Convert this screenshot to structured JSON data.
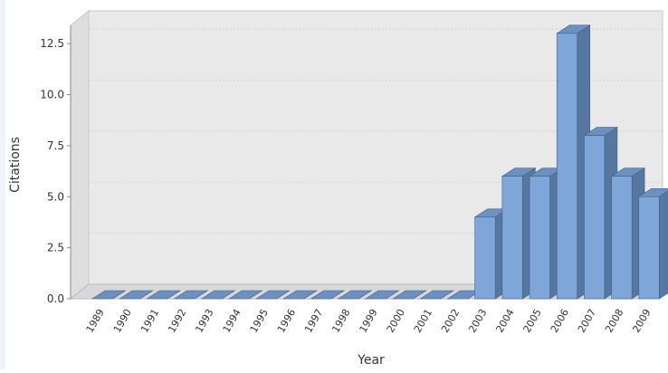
{
  "chart_data": {
    "type": "bar",
    "title": "",
    "xlabel": "Year",
    "ylabel": "Citations",
    "categories": [
      "1989",
      "1990",
      "1991",
      "1992",
      "1993",
      "1994",
      "1995",
      "1996",
      "1997",
      "1998",
      "1999",
      "2000",
      "2001",
      "2002",
      "2003",
      "2004",
      "2005",
      "2006",
      "2007",
      "2008",
      "2009"
    ],
    "values": [
      0,
      0,
      0,
      0,
      0,
      0,
      0,
      0,
      0,
      0,
      0,
      0,
      0,
      0,
      4,
      6,
      6,
      13,
      8,
      6,
      5
    ],
    "ylim": [
      0,
      13.75
    ],
    "yticks": [
      "0.0",
      "2.5",
      "5.0",
      "7.5",
      "10.0",
      "12.5"
    ],
    "grid": true,
    "colors": {
      "bar_front": "#7fa6d8",
      "bar_side": "#56779f",
      "bar_top": "#6e90c0",
      "plot_bg": "#e9e9e9",
      "grid": "#d2d2d2"
    }
  }
}
